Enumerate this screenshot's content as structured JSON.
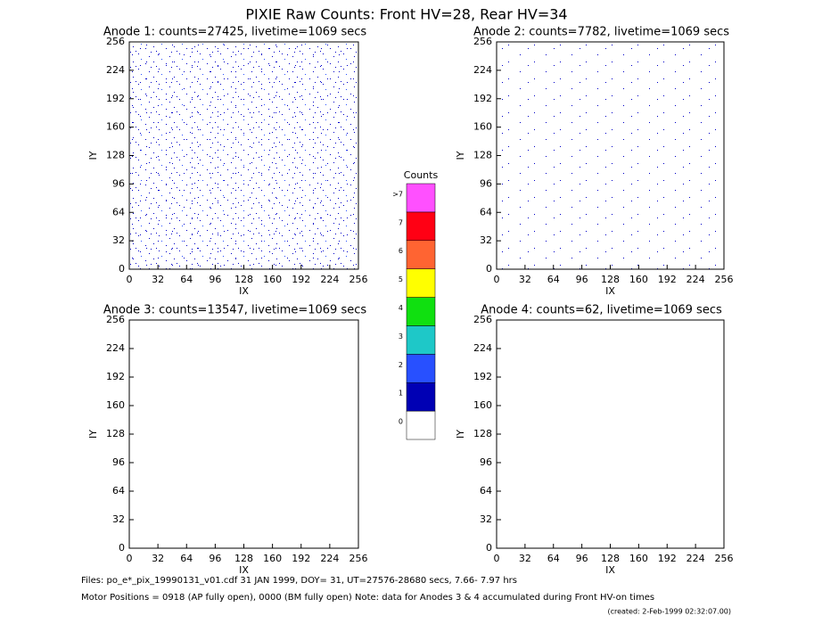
{
  "page_title": "PIXIE Raw Counts:  Front HV=28, Rear HV=34",
  "chart_data": [
    {
      "type": "heatmap",
      "title": "Anode 1: counts=27425, livetime=1069 secs",
      "xlabel": "IX",
      "ylabel": "IY",
      "xlim": [
        0,
        256
      ],
      "ylim": [
        0,
        256
      ],
      "xticks": [
        0,
        32,
        64,
        96,
        128,
        160,
        192,
        224,
        256
      ],
      "yticks": [
        0,
        32,
        64,
        96,
        128,
        160,
        192,
        224,
        256
      ]
    },
    {
      "type": "heatmap",
      "title": "Anode 2: counts=7782, livetime=1069 secs",
      "xlabel": "IX",
      "ylabel": "IY",
      "xlim": [
        0,
        256
      ],
      "ylim": [
        0,
        256
      ],
      "xticks": [
        0,
        32,
        64,
        96,
        128,
        160,
        192,
        224,
        256
      ],
      "yticks": [
        0,
        32,
        64,
        96,
        128,
        160,
        192,
        224,
        256
      ]
    },
    {
      "type": "heatmap",
      "title": "Anode 3: counts=13547, livetime=1069 secs",
      "xlabel": "IX",
      "ylabel": "IY",
      "xlim": [
        0,
        256
      ],
      "ylim": [
        0,
        256
      ],
      "xticks": [
        0,
        32,
        64,
        96,
        128,
        160,
        192,
        224,
        256
      ],
      "yticks": [
        0,
        32,
        64,
        96,
        128,
        160,
        192,
        224,
        256
      ]
    },
    {
      "type": "heatmap",
      "title": "Anode 4: counts=62, livetime=1069 secs",
      "xlabel": "IX",
      "ylabel": "IY",
      "xlim": [
        0,
        256
      ],
      "ylim": [
        0,
        256
      ],
      "xticks": [
        0,
        32,
        64,
        96,
        128,
        160,
        192,
        224,
        256
      ],
      "yticks": [
        0,
        32,
        64,
        96,
        128,
        160,
        192,
        224,
        256
      ]
    }
  ],
  "colorbar": {
    "title": "Counts",
    "labels": [
      "0",
      "1",
      "2",
      "3",
      "4",
      "5",
      "6",
      "7",
      ">7"
    ],
    "colors": [
      "#ffffff",
      "#0000b4",
      "#2850ff",
      "#1ec8c8",
      "#10e010",
      "#ffff00",
      "#ff6432",
      "#ff0014",
      "#ff50ff"
    ]
  },
  "footer": {
    "files": "Files: po_e*_pix_19990131_v01.cdf    31 JAN 1999, DOY= 31, UT=27576-28680 secs,  7.66- 7.97 hrs",
    "motor": "Motor Positions = 0918 (AP fully open), 0000 (BM fully open)    Note: data for Anodes 3 & 4 accumulated during Front HV-on times",
    "created": "(created:  2-Feb-1999 02:32:07.00)"
  }
}
